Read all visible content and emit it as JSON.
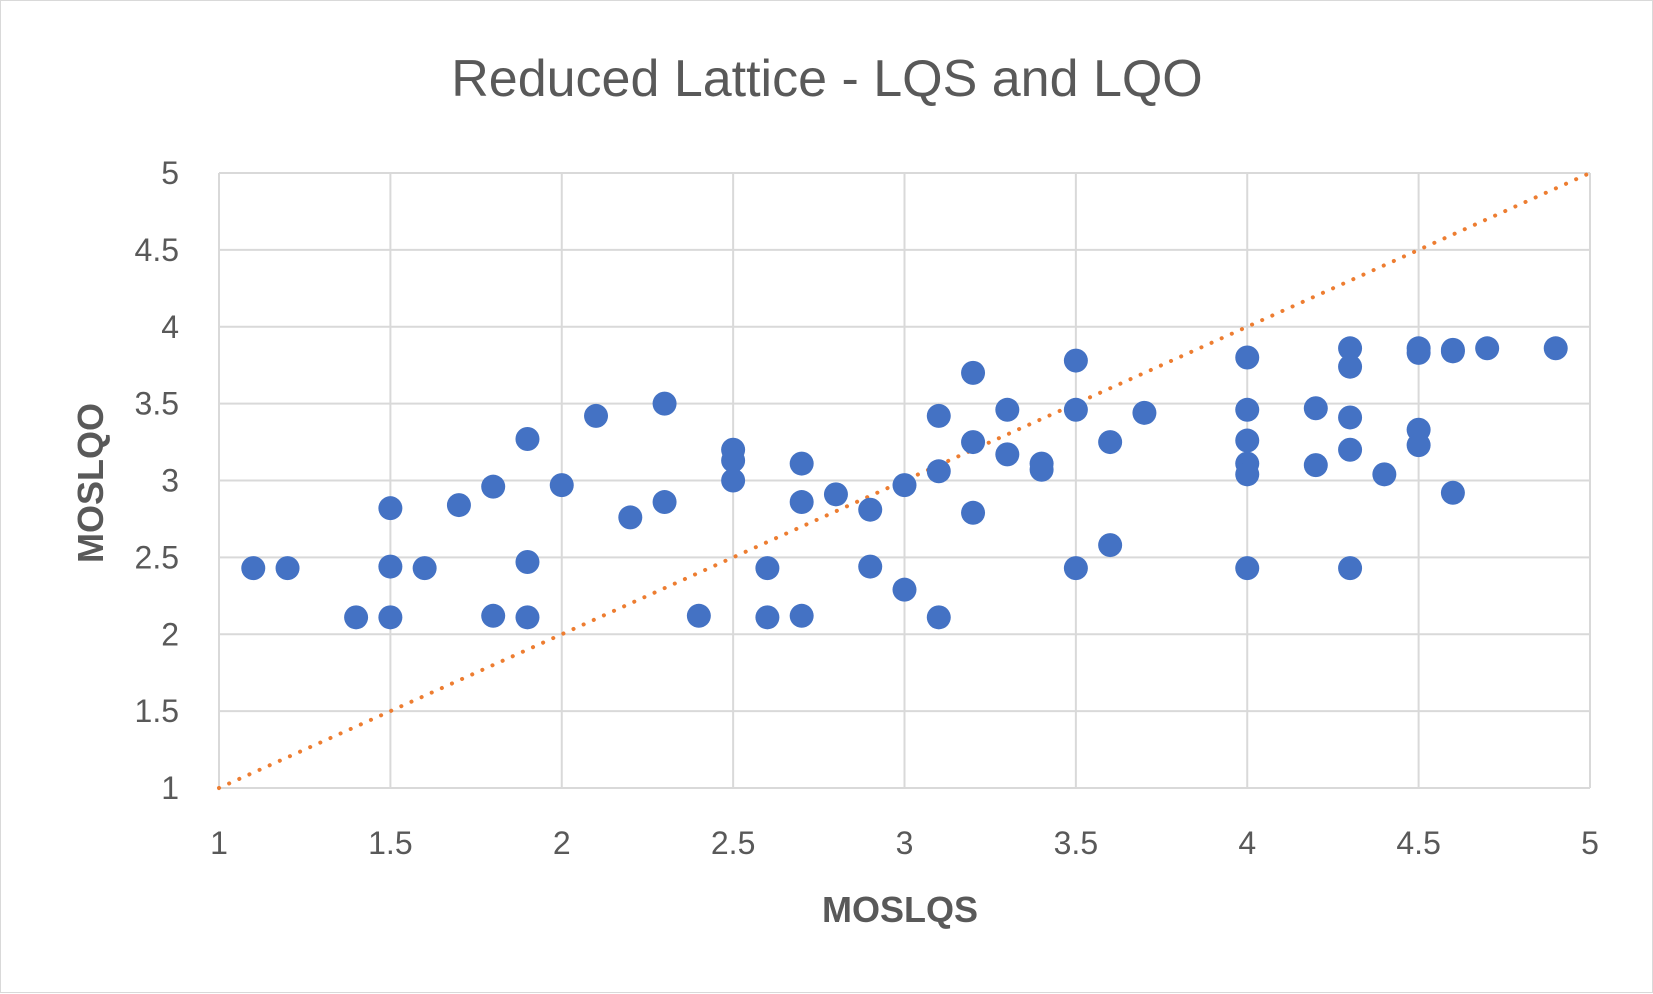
{
  "chart_data": {
    "type": "scatter",
    "title": "Reduced Lattice - LQS and LQO",
    "xlabel": "MOSLQS",
    "ylabel": "MOSLQO",
    "xlim": [
      1,
      5
    ],
    "ylim": [
      1,
      5
    ],
    "xticks": [
      "1",
      "1.5",
      "2",
      "2.5",
      "3",
      "3.5",
      "4",
      "4.5",
      "5"
    ],
    "yticks": [
      "1",
      "1.5",
      "2",
      "2.5",
      "3",
      "3.5",
      "4",
      "4.5",
      "5"
    ],
    "grid": true,
    "legend": "none",
    "series": [
      {
        "color": "#4472c4",
        "points": [
          [
            1.1,
            2.43
          ],
          [
            1.2,
            2.43
          ],
          [
            1.4,
            2.11
          ],
          [
            1.5,
            2.82
          ],
          [
            1.5,
            2.44
          ],
          [
            1.5,
            2.11
          ],
          [
            1.6,
            2.43
          ],
          [
            1.7,
            2.84
          ],
          [
            1.8,
            2.96
          ],
          [
            1.8,
            2.12
          ],
          [
            1.9,
            3.27
          ],
          [
            1.9,
            2.47
          ],
          [
            1.9,
            2.11
          ],
          [
            2.0,
            2.97
          ],
          [
            2.1,
            3.42
          ],
          [
            2.2,
            2.76
          ],
          [
            2.3,
            3.5
          ],
          [
            2.3,
            2.86
          ],
          [
            2.4,
            2.12
          ],
          [
            2.5,
            3.2
          ],
          [
            2.5,
            3.13
          ],
          [
            2.5,
            3.0
          ],
          [
            2.6,
            2.43
          ],
          [
            2.6,
            2.11
          ],
          [
            2.7,
            3.11
          ],
          [
            2.7,
            2.86
          ],
          [
            2.7,
            2.12
          ],
          [
            2.8,
            2.91
          ],
          [
            2.9,
            2.81
          ],
          [
            2.9,
            2.44
          ],
          [
            3.0,
            2.97
          ],
          [
            3.0,
            2.29
          ],
          [
            3.1,
            3.42
          ],
          [
            3.1,
            3.06
          ],
          [
            3.1,
            2.11
          ],
          [
            3.2,
            3.7
          ],
          [
            3.2,
            3.25
          ],
          [
            3.2,
            2.79
          ],
          [
            3.3,
            3.46
          ],
          [
            3.3,
            3.17
          ],
          [
            3.4,
            3.11
          ],
          [
            3.4,
            3.07
          ],
          [
            3.5,
            3.78
          ],
          [
            3.5,
            3.46
          ],
          [
            3.5,
            2.43
          ],
          [
            3.6,
            3.25
          ],
          [
            3.6,
            2.58
          ],
          [
            3.7,
            3.44
          ],
          [
            4.0,
            3.8
          ],
          [
            4.0,
            3.46
          ],
          [
            4.0,
            3.26
          ],
          [
            4.0,
            3.11
          ],
          [
            4.0,
            3.04
          ],
          [
            4.0,
            2.43
          ],
          [
            4.2,
            3.47
          ],
          [
            4.2,
            3.1
          ],
          [
            4.3,
            3.86
          ],
          [
            4.3,
            3.74
          ],
          [
            4.3,
            3.41
          ],
          [
            4.3,
            3.2
          ],
          [
            4.3,
            2.43
          ],
          [
            4.4,
            3.04
          ],
          [
            4.5,
            3.86
          ],
          [
            4.5,
            3.83
          ],
          [
            4.5,
            3.33
          ],
          [
            4.5,
            3.23
          ],
          [
            4.6,
            3.85
          ],
          [
            4.6,
            3.84
          ],
          [
            4.6,
            2.92
          ],
          [
            4.7,
            3.86
          ],
          [
            4.9,
            3.86
          ]
        ]
      }
    ],
    "reference_line": {
      "style": "dotted",
      "color": "#ed7d31",
      "from": [
        1,
        1
      ],
      "to": [
        5,
        5
      ]
    }
  }
}
